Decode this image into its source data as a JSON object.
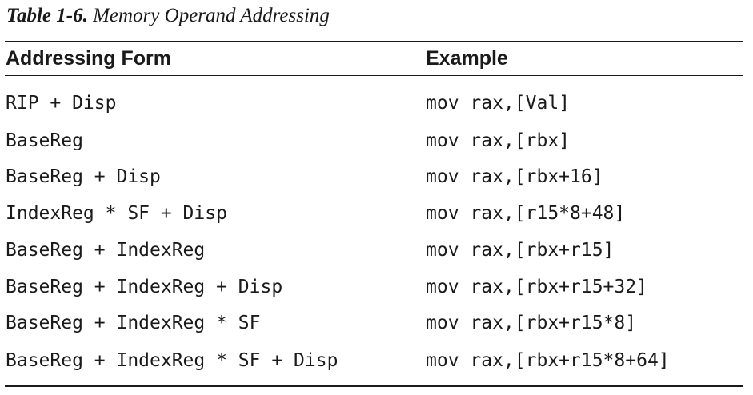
{
  "caption": {
    "number": "Table 1-6.",
    "title": "Memory Operand Addressing"
  },
  "table": {
    "headers": [
      "Addressing Form",
      "Example"
    ],
    "rows": [
      [
        "RIP + Disp",
        "mov rax,[Val]"
      ],
      [
        "BaseReg",
        "mov rax,[rbx]"
      ],
      [
        "BaseReg + Disp",
        "mov rax,[rbx+16]"
      ],
      [
        "IndexReg * SF + Disp",
        "mov rax,[r15*8+48]"
      ],
      [
        "BaseReg + IndexReg",
        "mov rax,[rbx+r15]"
      ],
      [
        "BaseReg + IndexReg + Disp",
        "mov rax,[rbx+r15+32]"
      ],
      [
        "BaseReg + IndexReg * SF",
        "mov rax,[rbx+r15*8]"
      ],
      [
        "BaseReg + IndexReg * SF + Disp",
        "mov rax,[rbx+r15*8+64]"
      ]
    ]
  }
}
